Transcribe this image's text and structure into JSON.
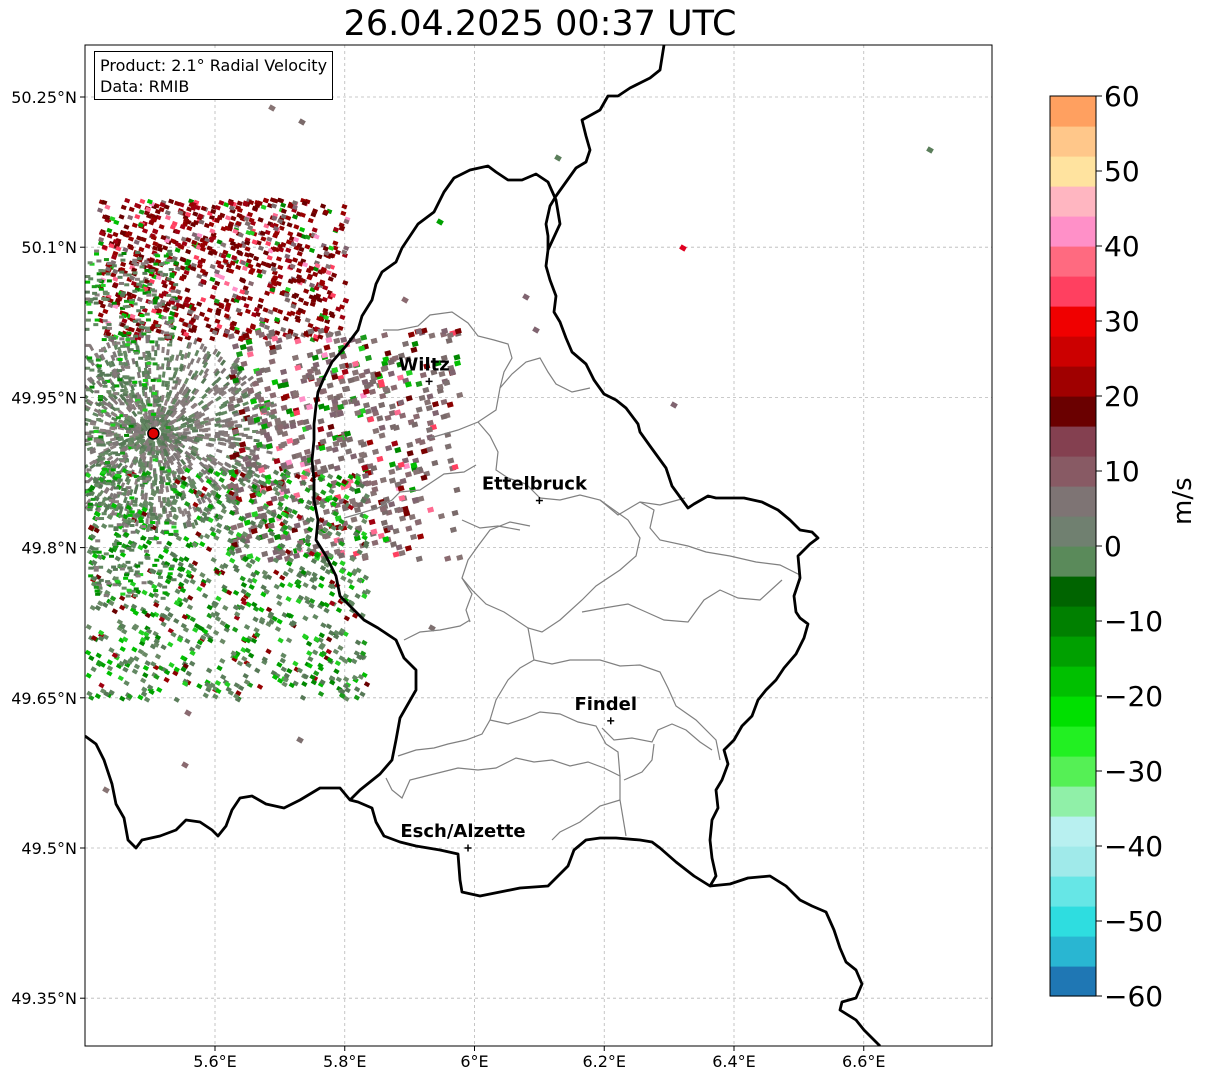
{
  "title": "26.04.2025 00:37 UTC",
  "info": {
    "product": "Product: 2.1° Radial Velocity",
    "data": "Data: RMIB"
  },
  "map": {
    "lon_range": [
      5.4,
      6.8
    ],
    "lat_range": [
      49.3,
      50.3
    ],
    "x_ticks": [
      "5.6°E",
      "5.8°E",
      "6°E",
      "6.2°E",
      "6.4°E",
      "6.6°E"
    ],
    "y_ticks": [
      "50.25°N",
      "50.1°N",
      "49.95°N",
      "49.8°N",
      "49.65°N",
      "49.5°N",
      "49.35°N"
    ],
    "gridlines": true,
    "radar_site": {
      "lon": 5.505,
      "lat": 49.914
    },
    "cities": [
      {
        "name": "Wiltz",
        "lon": 5.93,
        "lat": 49.966
      },
      {
        "name": "Ettelbruck",
        "lon": 6.1,
        "lat": 49.847
      },
      {
        "name": "Findel",
        "lon": 6.21,
        "lat": 49.627
      },
      {
        "name": "Esch/Alzette",
        "lon": 5.99,
        "lat": 49.5
      }
    ]
  },
  "colorbar": {
    "label": "m/s",
    "ticks": [
      "60",
      "50",
      "40",
      "30",
      "20",
      "10",
      "0",
      "−10",
      "−20",
      "−30",
      "−40",
      "−50",
      "−60"
    ],
    "range": [
      -60,
      60
    ],
    "colors_bottom_to_top": [
      "#1f77b4",
      "#29b6d2",
      "#2edde0",
      "#66e6e6",
      "#a0eaea",
      "#b8f0f0",
      "#90f0a8",
      "#55f055",
      "#22f022",
      "#00e000",
      "#00c000",
      "#00a000",
      "#008000",
      "#006400",
      "#5a8a5a",
      "#708070",
      "#7e7474",
      "#885a64",
      "#844050",
      "#6a0000",
      "#a00000",
      "#cc0000",
      "#f00000",
      "#ff4060",
      "#ff6a80",
      "#ff90c8",
      "#ffb6c1",
      "#ffe39f",
      "#ffc78a",
      "#ffa060"
    ]
  }
}
